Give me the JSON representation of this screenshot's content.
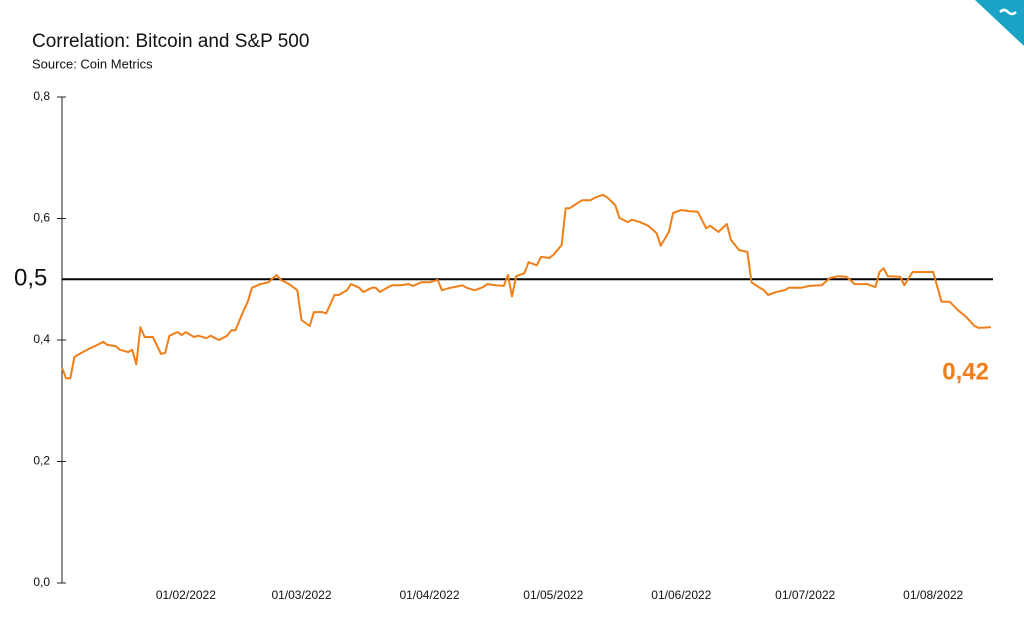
{
  "chart_data": {
    "type": "line",
    "title": "Correlation: Bitcoin and S&P 500",
    "subtitle": "Source: Coin Metrics",
    "annotation": "0,42",
    "reference_line": {
      "value": 0.5,
      "label": "0,5"
    },
    "xlim": [
      "2022-01-02",
      "2022-08-15"
    ],
    "xticks": [
      {
        "value": "2022-02-01",
        "label": "01/02/2022"
      },
      {
        "value": "2022-03-01",
        "label": "01/03/2022"
      },
      {
        "value": "2022-04-01",
        "label": "01/04/2022"
      },
      {
        "value": "2022-05-01",
        "label": "01/05/2022"
      },
      {
        "value": "2022-06-01",
        "label": "01/06/2022"
      },
      {
        "value": "2022-07-01",
        "label": "01/07/2022"
      },
      {
        "value": "2022-08-01",
        "label": "01/08/2022"
      }
    ],
    "ylim": [
      0,
      0.8
    ],
    "yticks": [
      {
        "value": 0,
        "label": "0,0"
      },
      {
        "value": 0.2,
        "label": "0,2"
      },
      {
        "value": 0.4,
        "label": "0,4"
      },
      {
        "value": 0.6,
        "label": "0,6"
      },
      {
        "value": 0.8,
        "label": "0,8"
      }
    ],
    "x": [
      "2022-01-02",
      "2022-01-03",
      "2022-01-04",
      "2022-01-05",
      "2022-01-07",
      "2022-01-09",
      "2022-01-10",
      "2022-01-12",
      "2022-01-13",
      "2022-01-15",
      "2022-01-16",
      "2022-01-18",
      "2022-01-19",
      "2022-01-20",
      "2022-01-21",
      "2022-01-22",
      "2022-01-24",
      "2022-01-26",
      "2022-01-27",
      "2022-01-28",
      "2022-01-30",
      "2022-01-31",
      "2022-02-01",
      "2022-02-03",
      "2022-02-04",
      "2022-02-06",
      "2022-02-07",
      "2022-02-09",
      "2022-02-11",
      "2022-02-12",
      "2022-02-13",
      "2022-02-15",
      "2022-02-16",
      "2022-02-17",
      "2022-02-19",
      "2022-02-21",
      "2022-02-23",
      "2022-02-24",
      "2022-02-26",
      "2022-02-28",
      "2022-03-01",
      "2022-03-03",
      "2022-03-04",
      "2022-03-06",
      "2022-03-07",
      "2022-03-09",
      "2022-03-10",
      "2022-03-12",
      "2022-03-13",
      "2022-03-15",
      "2022-03-16",
      "2022-03-18",
      "2022-03-19",
      "2022-03-20",
      "2022-03-22",
      "2022-03-23",
      "2022-03-25",
      "2022-03-27",
      "2022-03-28",
      "2022-03-30",
      "2022-04-01",
      "2022-04-03",
      "2022-04-04",
      "2022-04-06",
      "2022-04-07",
      "2022-04-09",
      "2022-04-10",
      "2022-04-12",
      "2022-04-14",
      "2022-04-15",
      "2022-04-17",
      "2022-04-19",
      "2022-04-20",
      "2022-04-21",
      "2022-04-22",
      "2022-04-24",
      "2022-04-25",
      "2022-04-27",
      "2022-04-28",
      "2022-04-30",
      "2022-05-01",
      "2022-05-03",
      "2022-05-04",
      "2022-05-05",
      "2022-05-07",
      "2022-05-08",
      "2022-05-10",
      "2022-05-11",
      "2022-05-13",
      "2022-05-14",
      "2022-05-16",
      "2022-05-17",
      "2022-05-19",
      "2022-05-20",
      "2022-05-22",
      "2022-05-24",
      "2022-05-26",
      "2022-05-27",
      "2022-05-29",
      "2022-05-30",
      "2022-06-01",
      "2022-06-03",
      "2022-06-05",
      "2022-06-07",
      "2022-06-08",
      "2022-06-10",
      "2022-06-12",
      "2022-06-13",
      "2022-06-15",
      "2022-06-17",
      "2022-06-18",
      "2022-06-20",
      "2022-06-21",
      "2022-06-22",
      "2022-06-24",
      "2022-06-26",
      "2022-06-27",
      "2022-06-30",
      "2022-07-02",
      "2022-07-05",
      "2022-07-07",
      "2022-07-09",
      "2022-07-11",
      "2022-07-13",
      "2022-07-16",
      "2022-07-18",
      "2022-07-19",
      "2022-07-20",
      "2022-07-21",
      "2022-07-24",
      "2022-07-25",
      "2022-07-27",
      "2022-07-29",
      "2022-08-01",
      "2022-08-03",
      "2022-08-05",
      "2022-08-07",
      "2022-08-09",
      "2022-08-11",
      "2022-08-12",
      "2022-08-15"
    ],
    "series": [
      {
        "color": "#f07f1a",
        "values": [
          0.354,
          0.337,
          0.337,
          0.372,
          0.38,
          0.387,
          0.39,
          0.397,
          0.392,
          0.39,
          0.384,
          0.38,
          0.384,
          0.36,
          0.421,
          0.405,
          0.405,
          0.377,
          0.379,
          0.407,
          0.413,
          0.408,
          0.413,
          0.405,
          0.407,
          0.403,
          0.407,
          0.4,
          0.407,
          0.416,
          0.416,
          0.449,
          0.463,
          0.486,
          0.492,
          0.495,
          0.507,
          0.499,
          0.492,
          0.482,
          0.433,
          0.423,
          0.446,
          0.446,
          0.444,
          0.474,
          0.474,
          0.482,
          0.492,
          0.486,
          0.479,
          0.486,
          0.486,
          0.479,
          0.487,
          0.49,
          0.49,
          0.492,
          0.489,
          0.495,
          0.495,
          0.499,
          0.482,
          0.486,
          0.487,
          0.49,
          0.486,
          0.482,
          0.487,
          0.492,
          0.49,
          0.489,
          0.507,
          0.472,
          0.505,
          0.51,
          0.528,
          0.523,
          0.537,
          0.535,
          0.54,
          0.556,
          0.617,
          0.617,
          0.626,
          0.63,
          0.63,
          0.634,
          0.639,
          0.635,
          0.622,
          0.601,
          0.594,
          0.598,
          0.594,
          0.588,
          0.576,
          0.555,
          0.578,
          0.609,
          0.614,
          0.612,
          0.611,
          0.584,
          0.588,
          0.578,
          0.591,
          0.565,
          0.548,
          0.545,
          0.495,
          0.486,
          0.482,
          0.474,
          0.479,
          0.482,
          0.486,
          0.486,
          0.489,
          0.49,
          0.502,
          0.505,
          0.504,
          0.492,
          0.492,
          0.487,
          0.512,
          0.518,
          0.505,
          0.504,
          0.49,
          0.512,
          0.512,
          0.512,
          0.463,
          0.463,
          0.449,
          0.438,
          0.423,
          0.42,
          0.421
        ]
      }
    ]
  }
}
